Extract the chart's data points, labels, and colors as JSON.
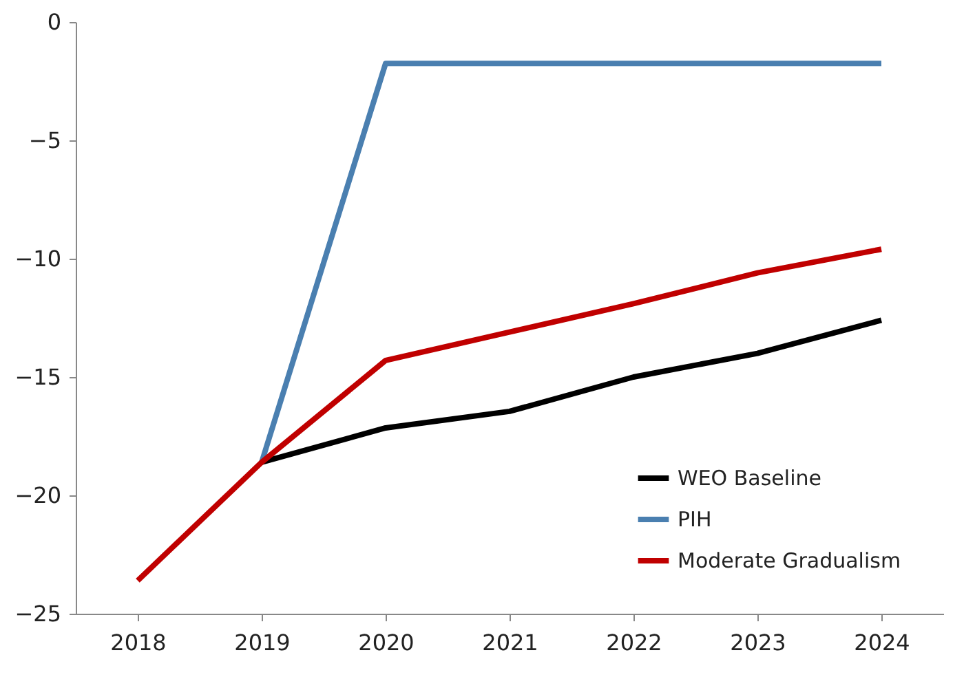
{
  "chart_data": {
    "type": "line",
    "categories": [
      "2018",
      "2019",
      "2020",
      "2021",
      "2022",
      "2023",
      "2024"
    ],
    "series": [
      {
        "name": "WEO Baseline",
        "color": "#000000",
        "values": [
          null,
          -18.6,
          -17.15,
          -16.45,
          -15.0,
          -14.0,
          -12.6
        ]
      },
      {
        "name": "PIH",
        "color": "#4a7fb0",
        "values": [
          null,
          -18.6,
          -1.75,
          -1.75,
          -1.75,
          -1.75,
          -1.75
        ]
      },
      {
        "name": "Moderate Gradualism",
        "color": "#c00000",
        "values": [
          -23.6,
          -18.6,
          -14.3,
          -13.1,
          -11.9,
          -10.6,
          -9.6
        ]
      }
    ],
    "ylim": [
      -25,
      0
    ],
    "yticks": [
      -25,
      -20,
      -15,
      -10,
      -5,
      0
    ],
    "grid": false,
    "legend": "bottom right",
    "marker": "none",
    "line_style": "solid"
  }
}
